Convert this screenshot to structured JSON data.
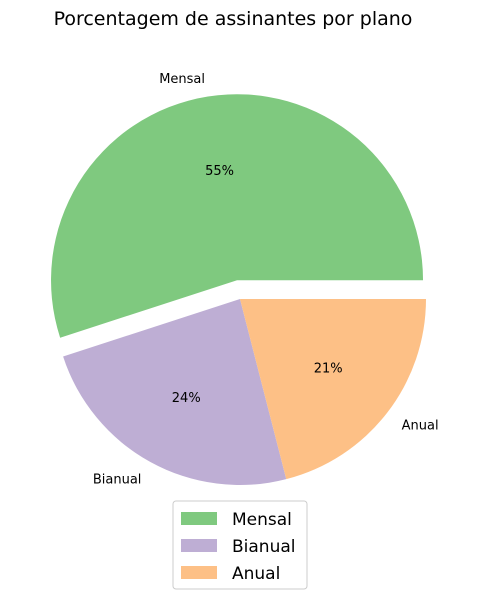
{
  "chart_data": {
    "type": "pie",
    "title": "Porcentagem de assinantes por plano",
    "categories": [
      "Mensal",
      "Bianual",
      "Anual"
    ],
    "values": [
      55,
      24,
      21
    ],
    "value_labels": [
      "55%",
      "24%",
      "21%"
    ],
    "colors": [
      "#7fc97f",
      "#beaed4",
      "#fdc086"
    ],
    "exploded": [
      "Mensal"
    ],
    "legend": {
      "placement": "bottom-center",
      "entries": [
        "Mensal",
        "Bianual",
        "Anual"
      ]
    }
  }
}
